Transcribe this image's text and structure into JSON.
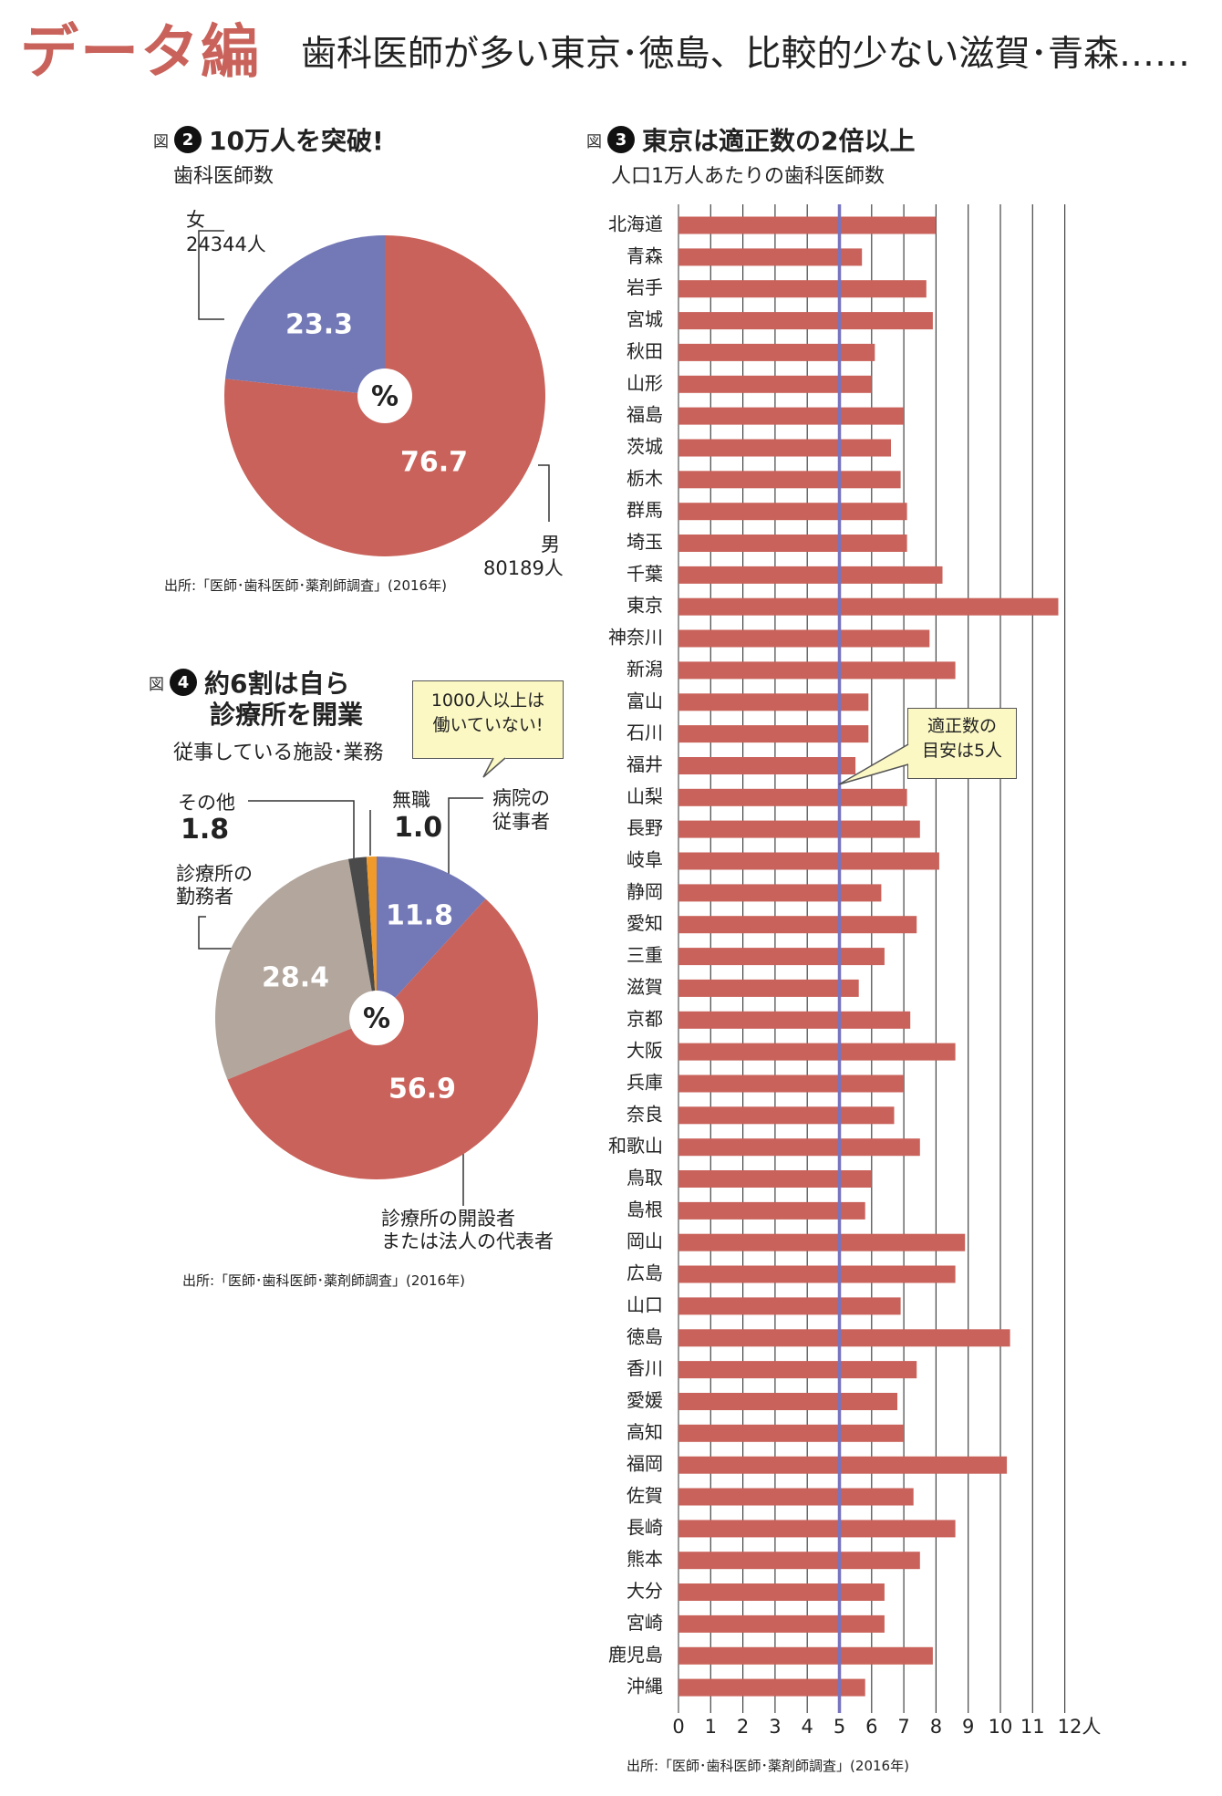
{
  "header": {
    "title": "データ編",
    "subtitle": "歯科医師が多い東京･徳島、比較的少ない滋賀･青森……"
  },
  "colors": {
    "red": "#c9625a",
    "blue": "#7378b6",
    "gray": "#b2a69d",
    "dark": "#4a4a4a",
    "orange": "#ef9a2a",
    "line": "#7774c0"
  },
  "fig2": {
    "zu": "図",
    "num": "2",
    "title": "10万人を突破!",
    "subtitle": "歯科医師数",
    "female_label": "女",
    "female_count": "24344人",
    "male_label": "男",
    "male_count": "80189人",
    "source": "出所:「医師･歯科医師･薬剤師調査」(2016年)"
  },
  "fig4": {
    "zu": "図",
    "num": "4",
    "title_line1": "約6割は自ら",
    "title_line2": "診療所を開業",
    "subtitle": "従事している施設･業務",
    "callout_line1": "1000人以上は",
    "callout_line2": "働いていない!",
    "other_label": "その他",
    "other_value": "1.8",
    "none_label": "無職",
    "none_value": "1.0",
    "hospital_label1": "病院の",
    "hospital_label2": "従事者",
    "clinic_emp_label1": "診療所の",
    "clinic_emp_label2": "勤務者",
    "owner_label1": "診療所の開設者",
    "owner_label2": "または法人の代表者",
    "source": "出所:「医師･歯科医師･薬剤師調査」(2016年)"
  },
  "fig3": {
    "zu": "図",
    "num": "3",
    "title": "東京は適正数の2倍以上",
    "subtitle": "人口1万人あたりの歯科医師数",
    "callout_line1": "適正数の",
    "callout_line2": "目安は5人",
    "unit": "人",
    "source": "出所:「医師･歯科医師･薬剤師調査」(2016年)"
  },
  "chart_data": [
    {
      "type": "pie",
      "title": "10万人を突破!",
      "subtitle": "歯科医師数",
      "center_label": "%",
      "slices": [
        {
          "label": "女",
          "value": 23.3,
          "count": "24344人",
          "color": "#7378b6"
        },
        {
          "label": "男",
          "value": 76.7,
          "count": "80189人",
          "color": "#c9625a"
        }
      ]
    },
    {
      "type": "pie",
      "title": "約6割は自ら診療所を開業",
      "subtitle": "従事している施設･業務",
      "center_label": "%",
      "slices": [
        {
          "label": "病院の従事者",
          "value": 11.8,
          "color": "#7378b6"
        },
        {
          "label": "診療所の開設者または法人の代表者",
          "value": 56.9,
          "color": "#c9625a"
        },
        {
          "label": "診療所の勤務者",
          "value": 28.4,
          "color": "#b2a69d"
        },
        {
          "label": "その他",
          "value": 1.8,
          "color": "#4a4a4a"
        },
        {
          "label": "無職",
          "value": 1.0,
          "color": "#ef9a2a"
        }
      ]
    },
    {
      "type": "bar",
      "orientation": "horizontal",
      "title": "東京は適正数の2倍以上",
      "subtitle": "人口1万人あたりの歯科医師数",
      "xlim": [
        0,
        12
      ],
      "xticks": [
        "0",
        "1",
        "2",
        "3",
        "4",
        "5",
        "6",
        "7",
        "8",
        "9",
        "10",
        "11",
        "12人"
      ],
      "reference_line": 5,
      "grid": true,
      "categories": [
        "北海道",
        "青森",
        "岩手",
        "宮城",
        "秋田",
        "山形",
        "福島",
        "茨城",
        "栃木",
        "群馬",
        "埼玉",
        "千葉",
        "東京",
        "神奈川",
        "新潟",
        "富山",
        "石川",
        "福井",
        "山梨",
        "長野",
        "岐阜",
        "静岡",
        "愛知",
        "三重",
        "滋賀",
        "京都",
        "大阪",
        "兵庫",
        "奈良",
        "和歌山",
        "鳥取",
        "島根",
        "岡山",
        "広島",
        "山口",
        "徳島",
        "香川",
        "愛媛",
        "高知",
        "福岡",
        "佐賀",
        "長崎",
        "熊本",
        "大分",
        "宮崎",
        "鹿児島",
        "沖縄"
      ],
      "values": [
        8.0,
        5.7,
        7.7,
        7.9,
        6.1,
        6.0,
        7.0,
        6.6,
        6.9,
        7.1,
        7.1,
        8.2,
        11.8,
        7.8,
        8.6,
        5.9,
        5.9,
        5.5,
        7.1,
        7.5,
        8.1,
        6.3,
        7.4,
        6.4,
        5.6,
        7.2,
        8.6,
        7.0,
        6.7,
        7.5,
        6.0,
        5.8,
        8.9,
        8.6,
        6.9,
        10.3,
        7.4,
        6.8,
        7.0,
        10.2,
        7.3,
        8.6,
        7.5,
        6.4,
        6.4,
        7.9,
        5.8
      ]
    }
  ]
}
